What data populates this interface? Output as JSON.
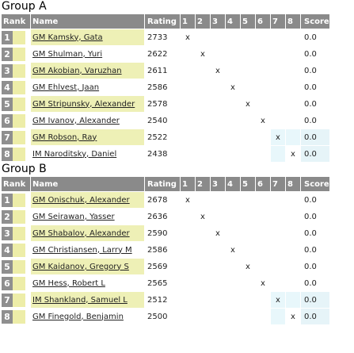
{
  "headers": {
    "rank": "Rank",
    "name": "Name",
    "rating": "Rating",
    "rounds": [
      "1",
      "2",
      "3",
      "4",
      "5",
      "6",
      "7",
      "8"
    ],
    "score": "Score"
  },
  "groups": [
    {
      "title": "Group A",
      "players": [
        {
          "rank": "1",
          "name": "GM Kamsky, Gata",
          "rating": "2733",
          "score": "0.0",
          "self": 0
        },
        {
          "rank": "2",
          "name": "GM Shulman, Yuri",
          "rating": "2622",
          "score": "0.0",
          "self": 1
        },
        {
          "rank": "3",
          "name": "GM Akobian, Varuzhan",
          "rating": "2611",
          "score": "0.0",
          "self": 2
        },
        {
          "rank": "4",
          "name": "GM Ehlvest, Jaan",
          "rating": "2586",
          "score": "0.0",
          "self": 3
        },
        {
          "rank": "5",
          "name": "GM Stripunsky, Alexander",
          "rating": "2578",
          "score": "0.0",
          "self": 4
        },
        {
          "rank": "6",
          "name": "GM Ivanov, Alexander",
          "rating": "2540",
          "score": "0.0",
          "self": 5
        },
        {
          "rank": "7",
          "name": "GM Robson, Ray",
          "rating": "2522",
          "score": "0.0",
          "self": 6
        },
        {
          "rank": "8",
          "name": "IM Naroditsky, Daniel",
          "rating": "2438",
          "score": "0.0",
          "self": 7
        }
      ]
    },
    {
      "title": "Group B",
      "players": [
        {
          "rank": "1",
          "name": "GM Onischuk, Alexander",
          "rating": "2678",
          "score": "0.0",
          "self": 0
        },
        {
          "rank": "2",
          "name": "GM Seirawan, Yasser",
          "rating": "2636",
          "score": "0.0",
          "self": 1
        },
        {
          "rank": "3",
          "name": "GM Shabalov, Alexander",
          "rating": "2590",
          "score": "0.0",
          "self": 2
        },
        {
          "rank": "4",
          "name": "GM Christiansen, Larry M",
          "rating": "2586",
          "score": "0.0",
          "self": 3
        },
        {
          "rank": "5",
          "name": "GM Kaidanov, Gregory S",
          "rating": "2569",
          "score": "0.0",
          "self": 4
        },
        {
          "rank": "6",
          "name": "GM Hess, Robert L",
          "rating": "2565",
          "score": "0.0",
          "self": 5
        },
        {
          "rank": "7",
          "name": "IM Shankland, Samuel L",
          "rating": "2512",
          "score": "0.0",
          "self": 6
        },
        {
          "rank": "8",
          "name": "GM Finegold, Benjamin",
          "rating": "2500",
          "score": "0.0",
          "self": 7
        }
      ]
    }
  ],
  "self_mark": "x"
}
